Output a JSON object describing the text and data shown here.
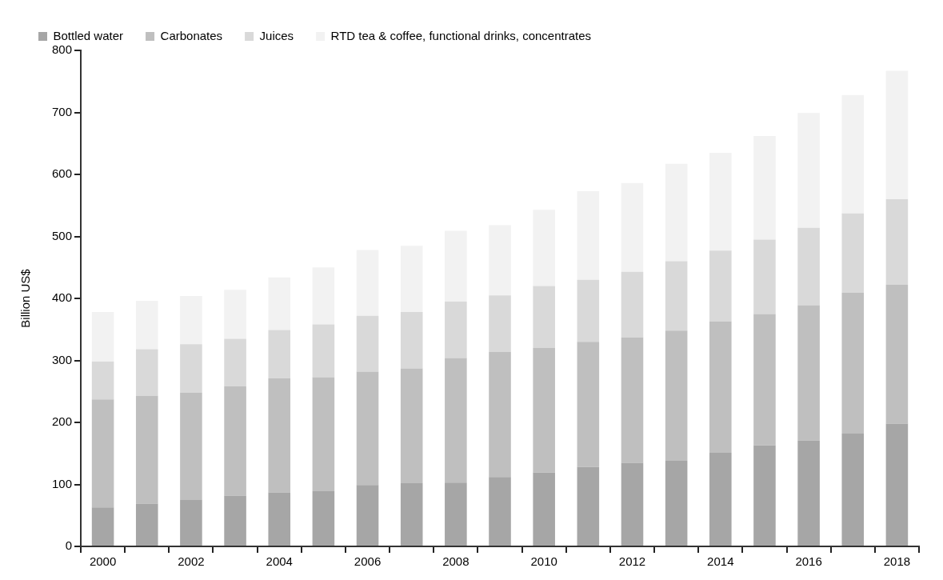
{
  "chart_data": {
    "type": "bar",
    "stacked": true,
    "ylabel": "Billion US$",
    "legend": "top left",
    "grid": false,
    "categories": [
      "2000",
      null,
      "2002",
      null,
      "2004",
      null,
      "2006",
      null,
      "2008",
      null,
      "2010",
      null,
      "2012",
      null,
      "2014",
      null,
      "2016",
      null,
      "2018"
    ],
    "ylim": [
      0,
      800
    ],
    "yticks": [
      0,
      100,
      200,
      300,
      400,
      500,
      600,
      700,
      800
    ],
    "series": [
      {
        "name": "Bottled water",
        "color": "#a6a6a6",
        "values": [
          63,
          69,
          75,
          82,
          87,
          89,
          99,
          102,
          103,
          112,
          119,
          128,
          135,
          138,
          151,
          163,
          171,
          182,
          198
        ]
      },
      {
        "name": "Carbonates",
        "color": "#bfbfbf",
        "values": [
          174,
          174,
          173,
          176,
          184,
          184,
          183,
          185,
          201,
          202,
          201,
          202,
          202,
          210,
          212,
          212,
          218,
          227,
          224
        ]
      },
      {
        "name": "Juices",
        "color": "#d9d9d9",
        "values": [
          61,
          75,
          78,
          77,
          78,
          85,
          90,
          91,
          91,
          91,
          100,
          100,
          106,
          112,
          114,
          120,
          125,
          128,
          138
        ]
      },
      {
        "name": "RTD tea & coffee, functional drinks, concentrates",
        "color": "#f2f2f2",
        "values": [
          80,
          78,
          78,
          79,
          85,
          92,
          106,
          107,
          114,
          113,
          123,
          143,
          143,
          157,
          158,
          167,
          185,
          191,
          207
        ]
      }
    ]
  }
}
